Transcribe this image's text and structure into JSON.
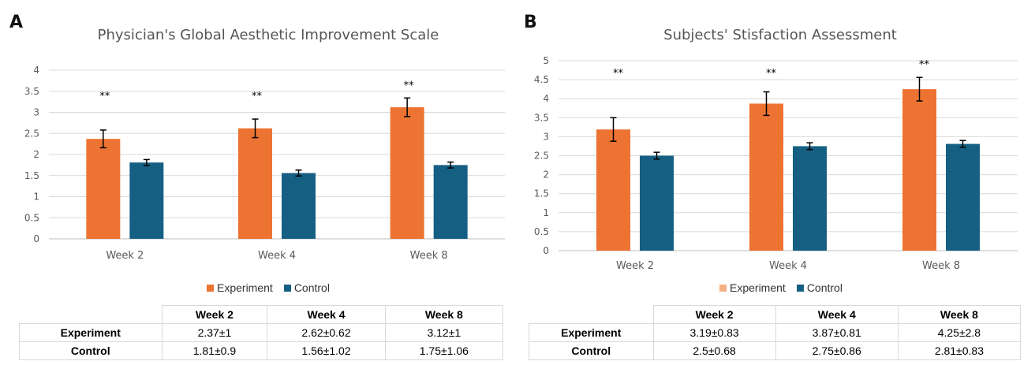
{
  "chart_data": [
    {
      "panel_label": "A",
      "type": "bar",
      "title": "Physician's Global Aesthetic Improvement Scale",
      "categories": [
        "Week 2",
        "Week 4",
        "Week 8"
      ],
      "series": [
        {
          "name": "Experiment",
          "color": "#ed7332",
          "values": [
            2.37,
            2.62,
            3.12
          ],
          "error": [
            0.21,
            0.22,
            0.22
          ]
        },
        {
          "name": "Control",
          "color": "#155f82",
          "values": [
            1.81,
            1.56,
            1.75
          ],
          "error": [
            0.07,
            0.07,
            0.07
          ]
        }
      ],
      "annotations": [
        "**",
        "**",
        "**"
      ],
      "ylim": [
        0,
        4
      ],
      "yticks": [
        "0",
        "0.5",
        "1",
        "1.5",
        "2",
        "2.5",
        "3",
        "3.5",
        "4"
      ],
      "grid": true,
      "legend_position": "bottom",
      "table": {
        "headers": [
          "Week 2",
          "Week 4",
          "Week 8"
        ],
        "rows": [
          {
            "label": "Experiment",
            "cells": [
              "2.37±1",
              "2.62±0.62",
              "3.12±1"
            ]
          },
          {
            "label": "Control",
            "cells": [
              "1.81±0.9",
              "1.56±1.02",
              "1.75±1.06"
            ]
          }
        ]
      }
    },
    {
      "panel_label": "B",
      "type": "bar",
      "title": "Subjects' Stisfaction Assessment",
      "categories": [
        "Week 2",
        "Week 4",
        "Week 8"
      ],
      "series": [
        {
          "name": "Experiment",
          "color": "#ed7332",
          "legend_color": "#f4b183",
          "values": [
            3.19,
            3.87,
            4.25
          ],
          "error": [
            0.31,
            0.31,
            0.31
          ]
        },
        {
          "name": "Control",
          "color": "#155f82",
          "values": [
            2.5,
            2.75,
            2.81
          ],
          "error": [
            0.09,
            0.09,
            0.09
          ]
        }
      ],
      "annotations": [
        "**",
        "**",
        "**"
      ],
      "ylim": [
        0,
        5
      ],
      "yticks": [
        "0",
        "0.5",
        "1",
        "1.5",
        "2",
        "2.5",
        "3",
        "3.5",
        "4",
        "4.5",
        "5"
      ],
      "grid": true,
      "legend_position": "bottom",
      "table": {
        "headers": [
          "Week 2",
          "Week 4",
          "Week 8"
        ],
        "rows": [
          {
            "label": "Experiment",
            "cells": [
              "3.19±0.83",
              "3.87±0.81",
              "4.25±2.8"
            ]
          },
          {
            "label": "Control",
            "cells": [
              "2.5±0.68",
              "2.75±0.86",
              "2.81±0.83"
            ]
          }
        ]
      }
    }
  ]
}
